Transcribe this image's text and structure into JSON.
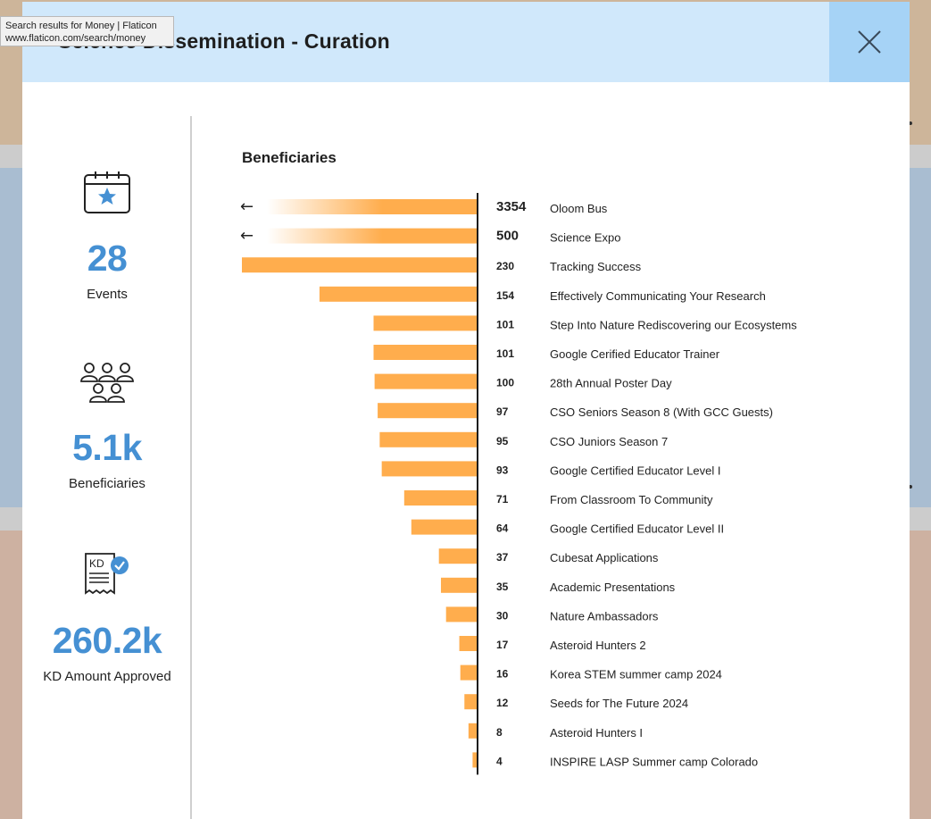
{
  "tooltip": {
    "line1": "Search results for Money | Flaticon",
    "line2": "www.flaticon.com/search/money"
  },
  "modal": {
    "title": "Science Dissemination - Curation",
    "close_icon": "close-icon"
  },
  "stats": [
    {
      "icon": "calendar-star-icon",
      "value": "28",
      "label": "Events"
    },
    {
      "icon": "people-group-icon",
      "value": "5.1k",
      "label": "Beneficiaries"
    },
    {
      "icon": "receipt-check-icon",
      "value": "260.2k",
      "label": "KD Amount Approved"
    }
  ],
  "colors": {
    "bar": "#ffad4d",
    "accent": "#4590d3",
    "header": "#d0e8fb",
    "close_bg": "#a6d3f6"
  },
  "chart_data": {
    "type": "bar",
    "orientation": "horizontal",
    "title": "Beneficiaries",
    "truncated_markers": [
      "←",
      "←"
    ],
    "categories": [
      "Oloom Bus",
      "Science Expo",
      "Tracking Success",
      "Effectively Communicating Your Research",
      "Step Into Nature Rediscovering our Ecosystems",
      "Google Cerified Educator Trainer",
      "28th Annual Poster Day",
      "CSO Seniors Season 8 (With GCC Guests)",
      "CSO Juniors Season 7",
      "Google Certified Educator Level I",
      "From Classroom To Community",
      "Google Certified Educator Level II",
      "Cubesat Applications",
      "Academic Presentations",
      "Nature Ambassadors",
      "Asteroid Hunters 2",
      "Korea STEM summer camp 2024",
      "Seeds for The Future 2024",
      "Asteroid Hunters I",
      "INSPIRE LASP Summer camp Colorado"
    ],
    "values": [
      3354,
      500,
      230,
      154,
      101,
      101,
      100,
      97,
      95,
      93,
      71,
      64,
      37,
      35,
      30,
      17,
      16,
      12,
      8,
      4
    ],
    "truncated": [
      true,
      true,
      false,
      false,
      false,
      false,
      false,
      false,
      false,
      false,
      false,
      false,
      false,
      false,
      false,
      false,
      false,
      false,
      false,
      false
    ]
  }
}
